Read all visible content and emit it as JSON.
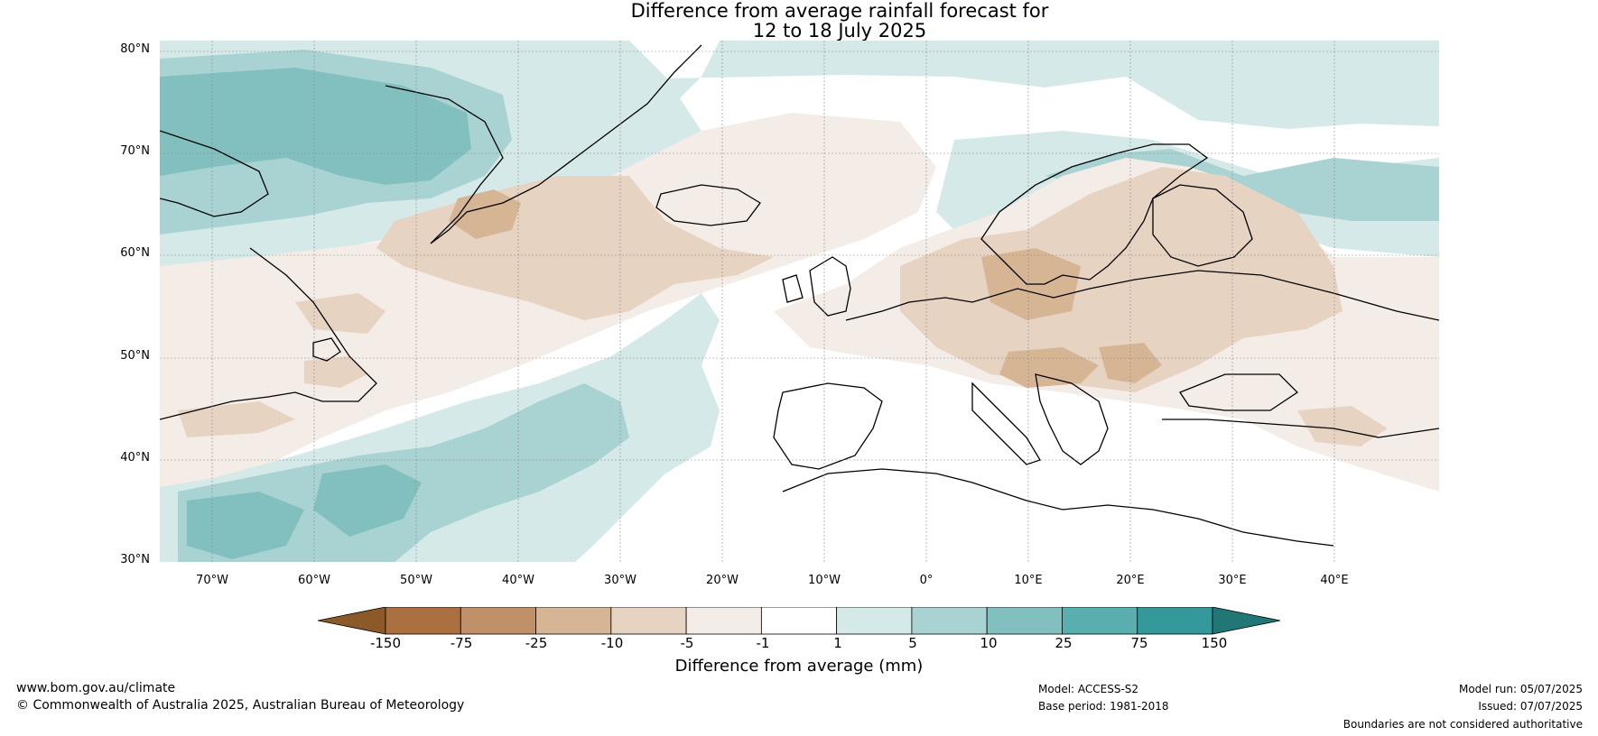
{
  "title_line1": "Difference from average rainfall forecast for",
  "title_line2": "12 to 18 July 2025",
  "lat_labels": [
    "80°N",
    "70°N",
    "60°N",
    "50°N",
    "40°N",
    "30°N"
  ],
  "lon_labels": [
    "70°W",
    "60°W",
    "50°W",
    "40°W",
    "30°W",
    "20°W",
    "10°W",
    "0°",
    "10°E",
    "20°E",
    "30°E",
    "40°E"
  ],
  "colorbar": {
    "ticks": [
      "-150",
      "-75",
      "-25",
      "-10",
      "-5",
      "-1",
      "1",
      "5",
      "10",
      "25",
      "75",
      "150"
    ],
    "colors": [
      "#8c5a28",
      "#ab7040",
      "#c09068",
      "#d6b595",
      "#e7d3c2",
      "#f4ece6",
      "#ffffff",
      "#d5e9e8",
      "#a9d3d3",
      "#82c0c0",
      "#5aaeae",
      "#33999a",
      "#217676"
    ],
    "label": "Difference from average (mm)"
  },
  "footer": {
    "url": "www.bom.gov.au/climate",
    "copyright": "© Commonwealth of Australia 2025, Australian Bureau of Meteorology",
    "model": "Model: ACCESS-S2",
    "base_period": "Base period: 1981-2018",
    "model_run": "Model run: 05/07/2025",
    "issued": "Issued: 07/07/2025",
    "disclaimer": "Boundaries are not considered authoritative"
  }
}
